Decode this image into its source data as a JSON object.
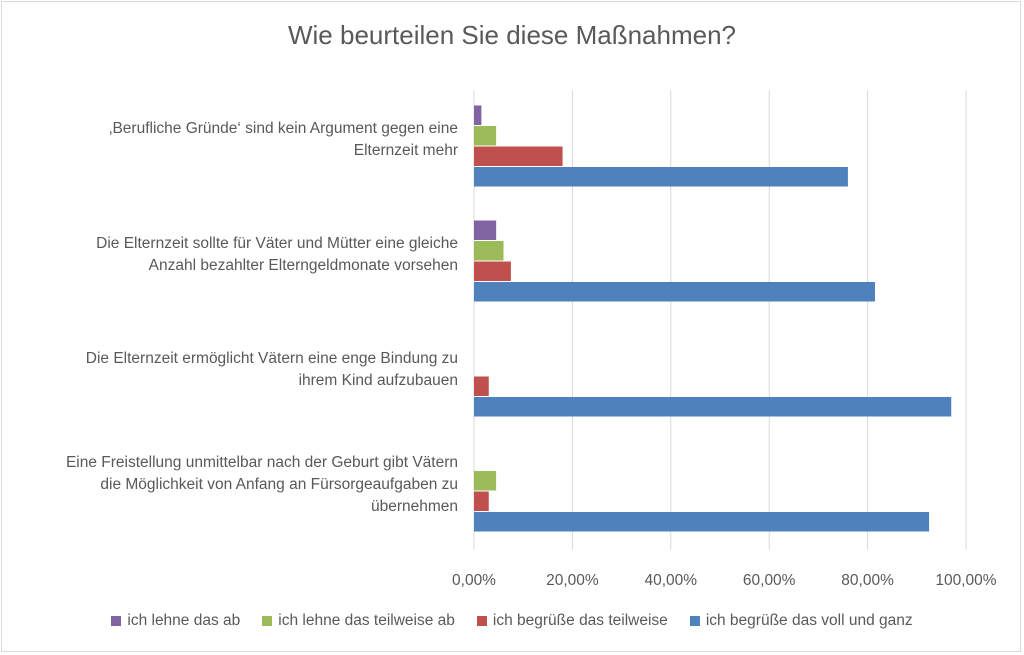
{
  "chart_data": {
    "type": "bar",
    "orientation": "horizontal",
    "title": "Wie beurteilen Sie diese Maßnahmen?",
    "categories": [
      "‚Berufliche Gründe‘ sind kein Argument gegen eine Elternzeit mehr",
      "Die Elternzeit sollte für Väter und Mütter eine gleiche Anzahl bezahlter Elterngeldmonate vorsehen",
      "Die Elternzeit ermöglicht Vätern eine enge Bindung zu ihrem Kind aufzubauen",
      "Eine Freistellung unmittelbar nach der Geburt gibt Vätern die Möglichkeit von Anfang an Fürsorgeaufgaben zu übernehmen"
    ],
    "category_lines": [
      [
        "‚Berufliche Gründe‘ sind kein Argument gegen eine",
        "Elternzeit mehr"
      ],
      [
        "Die Elternzeit sollte für Väter und Mütter eine gleiche",
        "Anzahl bezahlter Elterngeldmonate vorsehen"
      ],
      [
        "Die Elternzeit ermöglicht Vätern eine enge Bindung zu",
        "ihrem Kind aufzubauen"
      ],
      [
        "Eine Freistellung unmittelbar nach der Geburt gibt Vätern",
        "die Möglichkeit von Anfang an Fürsorgeaufgaben zu",
        "übernehmen"
      ]
    ],
    "series": [
      {
        "name": "ich lehne das ab",
        "color": "#8064a2",
        "values": [
          1.5,
          4.5,
          0,
          0
        ]
      },
      {
        "name": "ich lehne das teilweise ab",
        "color": "#9bbb59",
        "values": [
          4.5,
          6,
          0,
          4.5
        ]
      },
      {
        "name": "ich begrüße das teilweise",
        "color": "#c0504d",
        "values": [
          18,
          7.5,
          3,
          3
        ]
      },
      {
        "name": "ich begrüße das voll und ganz",
        "color": "#4f81bd",
        "values": [
          76,
          81.5,
          97,
          92.5
        ]
      }
    ],
    "xlim": [
      0,
      100
    ],
    "xticks": [
      "0,00%",
      "20,00%",
      "40,00%",
      "60,00%",
      "80,00%",
      "100,00%"
    ],
    "grid": true,
    "legend": "bottom"
  }
}
